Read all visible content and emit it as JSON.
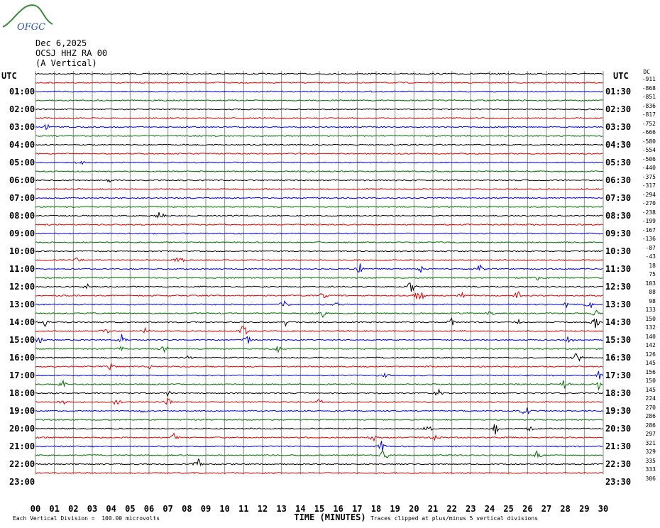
{
  "header": {
    "logo_text": "OFGC",
    "date": "Dec 6,2025",
    "station": "OCSJ HHZ RA 00",
    "component": "(A Vertical)"
  },
  "utc_left": "UTC",
  "utc_right": "UTC",
  "dc_header": "DC",
  "chart_data": {
    "type": "line",
    "xlabel": "TIME (MINUTES)",
    "xlim": [
      0,
      30
    ],
    "x_ticks": [
      "00",
      "01",
      "02",
      "03",
      "04",
      "05",
      "06",
      "07",
      "08",
      "09",
      "10",
      "11",
      "12",
      "13",
      "14",
      "15",
      "16",
      "17",
      "18",
      "19",
      "20",
      "21",
      "22",
      "23",
      "24",
      "25",
      "26",
      "27",
      "28",
      "29",
      "30"
    ],
    "left_labels": [
      "",
      "01:00",
      "02:00",
      "03:00",
      "04:00",
      "05:00",
      "06:00",
      "07:00",
      "08:00",
      "09:00",
      "10:00",
      "11:00",
      "12:00",
      "13:00",
      "14:00",
      "15:00",
      "16:00",
      "17:00",
      "18:00",
      "19:00",
      "20:00",
      "21:00",
      "22:00",
      "23:00"
    ],
    "right_labels": [
      "",
      "01:30",
      "02:30",
      "03:30",
      "04:30",
      "05:30",
      "06:30",
      "07:30",
      "08:30",
      "09:30",
      "10:30",
      "11:30",
      "12:30",
      "13:30",
      "14:30",
      "15:30",
      "16:30",
      "17:30",
      "18:30",
      "19:30",
      "20:30",
      "21:30",
      "22:30",
      "23:30"
    ],
    "dc_offsets": [
      "-911",
      "-868",
      "-851",
      "-836",
      "-817",
      "-752",
      "-666",
      "-580",
      "-554",
      "-506",
      "-440",
      "-375",
      "-317",
      "-294",
      "-270",
      "-238",
      "-199",
      "-167",
      "-136",
      "-87",
      "-43",
      "18",
      "75",
      "103",
      "88",
      "98",
      "133",
      "150",
      "132",
      "140",
      "142",
      "126",
      "145",
      "156",
      "150",
      "145",
      "224",
      "270",
      "286",
      "286",
      "297",
      "321",
      "329",
      "335",
      "333",
      "306"
    ],
    "trace_colors": [
      "#000000",
      "#e00000",
      "#0000e0",
      "#007000"
    ],
    "events": [
      {
        "trace": 6,
        "minute": 0.6,
        "amp": 6
      },
      {
        "trace": 10,
        "minute": 2.4,
        "amp": 5
      },
      {
        "trace": 12,
        "minute": 3.9,
        "amp": 7
      },
      {
        "trace": 16,
        "minute": 6.6,
        "amp": 10
      },
      {
        "trace": 21,
        "minute": 7.6,
        "amp": 10
      },
      {
        "trace": 21,
        "minute": 2.2,
        "amp": 5
      },
      {
        "trace": 22,
        "minute": 17.2,
        "amp": 11
      },
      {
        "trace": 22,
        "minute": 20.4,
        "amp": 8
      },
      {
        "trace": 22,
        "minute": 23.5,
        "amp": 7
      },
      {
        "trace": 23,
        "minute": 26.5,
        "amp": 6
      },
      {
        "trace": 24,
        "minute": 2.7,
        "amp": 5
      },
      {
        "trace": 24,
        "minute": 19.8,
        "amp": 13
      },
      {
        "trace": 25,
        "minute": 20.3,
        "amp": 18
      },
      {
        "trace": 25,
        "minute": 15.2,
        "amp": 6
      },
      {
        "trace": 25,
        "minute": 22.5,
        "amp": 6
      },
      {
        "trace": 25,
        "minute": 25.5,
        "amp": 9
      },
      {
        "trace": 26,
        "minute": 13.2,
        "amp": 10
      },
      {
        "trace": 26,
        "minute": 16.0,
        "amp": 6
      },
      {
        "trace": 26,
        "minute": 29.3,
        "amp": 9
      },
      {
        "trace": 26,
        "minute": 28.0,
        "amp": 6
      },
      {
        "trace": 27,
        "minute": 15.2,
        "amp": 6
      },
      {
        "trace": 27,
        "minute": 24.0,
        "amp": 6
      },
      {
        "trace": 27,
        "minute": 29.6,
        "amp": 8
      },
      {
        "trace": 28,
        "minute": 0.5,
        "amp": 7
      },
      {
        "trace": 28,
        "minute": 13.2,
        "amp": 7
      },
      {
        "trace": 28,
        "minute": 22.0,
        "amp": 8
      },
      {
        "trace": 28,
        "minute": 25.6,
        "amp": 8
      },
      {
        "trace": 28,
        "minute": 29.6,
        "amp": 12
      },
      {
        "trace": 29,
        "minute": 3.7,
        "amp": 5
      },
      {
        "trace": 29,
        "minute": 11.0,
        "amp": 11
      },
      {
        "trace": 29,
        "minute": 5.8,
        "amp": 5
      },
      {
        "trace": 30,
        "minute": 0.3,
        "amp": 9
      },
      {
        "trace": 30,
        "minute": 4.6,
        "amp": 11
      },
      {
        "trace": 30,
        "minute": 11.2,
        "amp": 7
      },
      {
        "trace": 30,
        "minute": 28.2,
        "amp": 8
      },
      {
        "trace": 31,
        "minute": 4.5,
        "amp": 8
      },
      {
        "trace": 31,
        "minute": 6.8,
        "amp": 6
      },
      {
        "trace": 31,
        "minute": 12.8,
        "amp": 7
      },
      {
        "trace": 32,
        "minute": 28.6,
        "amp": 10
      },
      {
        "trace": 32,
        "minute": 8.1,
        "amp": 4
      },
      {
        "trace": 33,
        "minute": 4.0,
        "amp": 7
      },
      {
        "trace": 33,
        "minute": 6.0,
        "amp": 5
      },
      {
        "trace": 34,
        "minute": 18.5,
        "amp": 5
      },
      {
        "trace": 34,
        "minute": 29.8,
        "amp": 7
      },
      {
        "trace": 35,
        "minute": 1.5,
        "amp": 8
      },
      {
        "trace": 35,
        "minute": 28.0,
        "amp": 10
      },
      {
        "trace": 35,
        "minute": 29.8,
        "amp": 10
      },
      {
        "trace": 36,
        "minute": 21.3,
        "amp": 6
      },
      {
        "trace": 36,
        "minute": 7.0,
        "amp": 6
      },
      {
        "trace": 37,
        "minute": 1.5,
        "amp": 6
      },
      {
        "trace": 37,
        "minute": 4.3,
        "amp": 7
      },
      {
        "trace": 37,
        "minute": 7.0,
        "amp": 8
      },
      {
        "trace": 37,
        "minute": 15.0,
        "amp": 6
      },
      {
        "trace": 38,
        "minute": 5.7,
        "amp": 6
      },
      {
        "trace": 38,
        "minute": 25.9,
        "amp": 12
      },
      {
        "trace": 40,
        "minute": 20.7,
        "amp": 8
      },
      {
        "trace": 40,
        "minute": 24.3,
        "amp": 9
      },
      {
        "trace": 40,
        "minute": 26.2,
        "amp": 7
      },
      {
        "trace": 41,
        "minute": 7.3,
        "amp": 7
      },
      {
        "trace": 41,
        "minute": 17.8,
        "amp": 8
      },
      {
        "trace": 41,
        "minute": 21.1,
        "amp": 5
      },
      {
        "trace": 42,
        "minute": 18.3,
        "amp": 9
      },
      {
        "trace": 43,
        "minute": 18.4,
        "amp": 12
      },
      {
        "trace": 43,
        "minute": 26.5,
        "amp": 8
      },
      {
        "trace": 44,
        "minute": 8.6,
        "amp": 10
      }
    ]
  },
  "footer": {
    "division_note": "Each Vertical Division =  100.00 microvolts",
    "clip_note": "Traces clipped at plus/minus 5 vertical divisions",
    "time_label": "TIME (MINUTES)"
  }
}
